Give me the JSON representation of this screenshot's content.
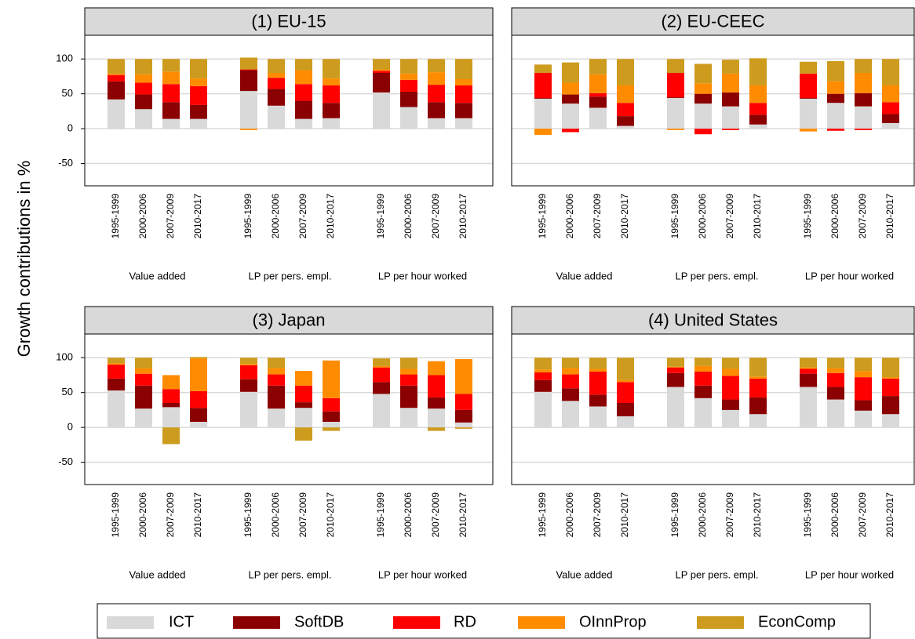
{
  "y_label": "Growth contributions in %",
  "chart_data": [
    {
      "type": "bar",
      "stacked": true,
      "title": "(1) EU-15",
      "categories": [
        "1995-1999",
        "2000-2006",
        "2007-2009",
        "2010-2017",
        "1995-1999",
        "2000-2006",
        "2007-2009",
        "2010-2017",
        "1995-1999",
        "2000-2006",
        "2007-2009",
        "2010-2017"
      ],
      "groups": [
        "Value added",
        "LP per pers. empl.",
        "LP per hour worked"
      ],
      "ylim": [
        -82,
        134
      ],
      "yticks": [
        -50,
        0,
        50,
        100
      ],
      "grid": true,
      "series": [
        {
          "name": "ICT",
          "color": "#d9d9d9",
          "values": [
            42,
            28,
            14,
            14,
            54,
            33,
            14,
            15,
            52,
            31,
            15,
            15
          ]
        },
        {
          "name": "SoftDB",
          "color": "#8b0000",
          "values": [
            26,
            21,
            24,
            20,
            30,
            24,
            26,
            22,
            28,
            22,
            23,
            22
          ]
        },
        {
          "name": "RD",
          "color": "#ff0000",
          "values": [
            9,
            17,
            26,
            27,
            1,
            16,
            24,
            25,
            3,
            17,
            25,
            25
          ]
        },
        {
          "name": "OInnProp",
          "color": "#ff8c00",
          "values": [
            2,
            12,
            18,
            11,
            -2,
            7,
            20,
            10,
            2,
            9,
            18,
            9
          ]
        },
        {
          "name": "EconComp",
          "color": "#cd9b1d",
          "values": [
            21,
            22,
            18,
            28,
            17,
            20,
            16,
            28,
            15,
            21,
            19,
            29
          ]
        }
      ]
    },
    {
      "type": "bar",
      "stacked": true,
      "title": "(2) EU-CEEC",
      "categories": [
        "1995-1999",
        "2000-2006",
        "2007-2009",
        "2010-2017",
        "1995-1999",
        "2000-2006",
        "2007-2009",
        "2010-2017",
        "1995-1999",
        "2000-2006",
        "2007-2009",
        "2010-2017"
      ],
      "groups": [
        "Value added",
        "LP per pers. empl.",
        "LP per hour worked"
      ],
      "ylim": [
        -82,
        134
      ],
      "yticks": [
        -50,
        0,
        50,
        100
      ],
      "grid": true,
      "series": [
        {
          "values": [
            43,
            36,
            30,
            4,
            44,
            36,
            32,
            6,
            43,
            37,
            32,
            8
          ]
        },
        {
          "values": [
            1,
            13,
            16,
            14,
            1,
            14,
            20,
            14,
            1,
            13,
            19,
            13
          ]
        },
        {
          "values": [
            36,
            -5,
            5,
            19,
            35,
            -8,
            -2,
            17,
            35,
            -3,
            -2,
            17
          ]
        },
        {
          "values": [
            -9,
            17,
            27,
            25,
            -2,
            15,
            27,
            25,
            -4,
            18,
            29,
            24
          ]
        },
        {
          "values": [
            12,
            29,
            22,
            38,
            20,
            28,
            20,
            39,
            17,
            29,
            20,
            38
          ]
        }
      ]
    },
    {
      "type": "bar",
      "stacked": true,
      "title": "(3) Japan",
      "categories": [
        "1995-1999",
        "2000-2006",
        "2007-2009",
        "2010-2017",
        "1995-1999",
        "2000-2006",
        "2007-2009",
        "2010-2017",
        "1995-1999",
        "2000-2006",
        "2007-2009",
        "2010-2017"
      ],
      "groups": [
        "Value added",
        "LP per pers. empl.",
        "LP per hour worked"
      ],
      "ylim": [
        -82,
        134
      ],
      "yticks": [
        -50,
        0,
        50,
        100
      ],
      "grid": true,
      "series": [
        {
          "values": [
            53,
            27,
            29,
            8,
            51,
            27,
            28,
            8,
            48,
            28,
            27,
            7
          ]
        },
        {
          "values": [
            17,
            33,
            6,
            20,
            18,
            33,
            8,
            15,
            17,
            32,
            16,
            18
          ]
        },
        {
          "values": [
            20,
            17,
            20,
            24,
            20,
            16,
            24,
            19,
            21,
            16,
            32,
            23
          ]
        },
        {
          "values": [
            2,
            8,
            20,
            47,
            2,
            9,
            21,
            54,
            2,
            8,
            20,
            50
          ]
        },
        {
          "values": [
            8,
            15,
            -24,
            2,
            9,
            15,
            -19,
            -5,
            11,
            16,
            -5,
            -2
          ]
        }
      ]
    },
    {
      "type": "bar",
      "stacked": true,
      "title": "(4) United States",
      "categories": [
        "1995-1999",
        "2000-2006",
        "2007-2009",
        "2010-2017",
        "1995-1999",
        "2000-2006",
        "2007-2009",
        "2010-2017",
        "1995-1999",
        "2000-2006",
        "2007-2009",
        "2010-2017"
      ],
      "groups": [
        "Value added",
        "LP per pers. empl.",
        "LP per hour worked"
      ],
      "ylim": [
        -82,
        134
      ],
      "yticks": [
        -50,
        0,
        50,
        100
      ],
      "grid": true,
      "series": [
        {
          "values": [
            51,
            38,
            30,
            16,
            58,
            42,
            25,
            19,
            58,
            40,
            24,
            19
          ]
        },
        {
          "values": [
            17,
            18,
            17,
            19,
            20,
            18,
            15,
            24,
            19,
            18,
            15,
            26
          ]
        },
        {
          "values": [
            11,
            20,
            33,
            30,
            8,
            20,
            34,
            27,
            7,
            20,
            33,
            25
          ]
        },
        {
          "values": [
            4,
            9,
            4,
            3,
            1,
            8,
            10,
            3,
            2,
            7,
            9,
            2
          ]
        },
        {
          "values": [
            17,
            15,
            16,
            32,
            13,
            12,
            16,
            27,
            14,
            15,
            19,
            28
          ]
        }
      ]
    }
  ]
}
